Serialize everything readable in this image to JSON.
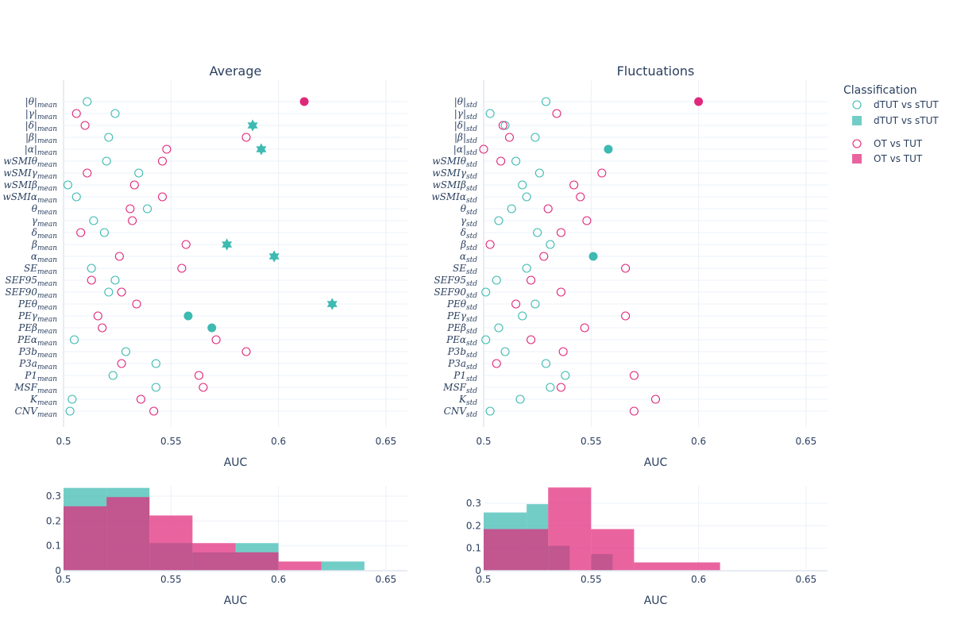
{
  "chart_data": [
    {
      "id": "average",
      "type": "scatter",
      "title": "Average",
      "xlabel": "AUC",
      "xlim": [
        0.5,
        0.66
      ],
      "xticks": [
        "0.5",
        "0.55",
        "0.6",
        "0.65"
      ],
      "xtick_values": [
        0.5,
        0.55,
        0.6,
        0.65
      ],
      "categories": [
        {
          "base": "|θ|",
          "sub": "mean"
        },
        {
          "base": "|γ|",
          "sub": "mean"
        },
        {
          "base": "|δ|",
          "sub": "mean"
        },
        {
          "base": "|β|",
          "sub": "mean"
        },
        {
          "base": "|α|",
          "sub": "mean"
        },
        {
          "base": "wSMIθ",
          "sub": "mean"
        },
        {
          "base": "wSMIγ",
          "sub": "mean"
        },
        {
          "base": "wSMIβ",
          "sub": "mean"
        },
        {
          "base": "wSMIα",
          "sub": "mean"
        },
        {
          "base": "θ",
          "sub": "mean"
        },
        {
          "base": "γ",
          "sub": "mean"
        },
        {
          "base": "δ",
          "sub": "mean"
        },
        {
          "base": "β",
          "sub": "mean"
        },
        {
          "base": "α",
          "sub": "mean"
        },
        {
          "base": "SE",
          "sub": "mean"
        },
        {
          "base": "SEF95",
          "sub": "mean"
        },
        {
          "base": "SEF90",
          "sub": "mean"
        },
        {
          "base": "PEθ",
          "sub": "mean"
        },
        {
          "base": "PEγ",
          "sub": "mean"
        },
        {
          "base": "PEβ",
          "sub": "mean"
        },
        {
          "base": "PEα",
          "sub": "mean"
        },
        {
          "base": "P3b",
          "sub": "mean"
        },
        {
          "base": "P3a",
          "sub": "mean"
        },
        {
          "base": "P1",
          "sub": "mean"
        },
        {
          "base": "MSF",
          "sub": "mean"
        },
        {
          "base": "K",
          "sub": "mean"
        },
        {
          "base": "CNV",
          "sub": "mean"
        }
      ],
      "series": [
        {
          "name": "dTUT vs sTUT",
          "color": "#3dbab2",
          "values": [
            0.511,
            0.524,
            0.588,
            0.521,
            0.592,
            0.52,
            0.535,
            0.502,
            0.506,
            0.539,
            0.514,
            0.519,
            0.576,
            0.598,
            0.513,
            0.524,
            0.521,
            0.625,
            0.558,
            0.569,
            0.505,
            0.529,
            0.543,
            0.523,
            0.543,
            0.504,
            0.503
          ],
          "markers": [
            "open",
            "open",
            "star",
            "open",
            "star",
            "open",
            "open",
            "open",
            "open",
            "open",
            "open",
            "open",
            "star",
            "star",
            "open",
            "open",
            "open",
            "star",
            "filled",
            "filled",
            "open",
            "open",
            "open",
            "open",
            "open",
            "open",
            "open"
          ]
        },
        {
          "name": "OT vs TUT",
          "color": "#e0287a",
          "values": [
            0.612,
            0.506,
            0.51,
            0.585,
            0.548,
            0.546,
            0.511,
            0.533,
            0.546,
            0.531,
            0.532,
            0.508,
            0.557,
            0.526,
            0.555,
            0.513,
            0.527,
            0.534,
            0.516,
            0.518,
            0.571,
            0.585,
            0.527,
            0.563,
            0.565,
            0.536,
            0.542
          ],
          "markers": [
            "filled",
            "open",
            "open",
            "open",
            "open",
            "open",
            "open",
            "open",
            "open",
            "open",
            "open",
            "open",
            "open",
            "open",
            "open",
            "open",
            "open",
            "open",
            "open",
            "open",
            "open",
            "open",
            "open",
            "open",
            "open",
            "open",
            "open"
          ]
        }
      ]
    },
    {
      "id": "fluctuations",
      "type": "scatter",
      "title": "Fluctuations",
      "xlabel": "AUC",
      "xlim": [
        0.5,
        0.66
      ],
      "xticks": [
        "0.5",
        "0.55",
        "0.6",
        "0.65"
      ],
      "xtick_values": [
        0.5,
        0.55,
        0.6,
        0.65
      ],
      "categories": [
        {
          "base": "|θ|",
          "sub": "std"
        },
        {
          "base": "|γ|",
          "sub": "std"
        },
        {
          "base": "|δ|",
          "sub": "std"
        },
        {
          "base": "|β|",
          "sub": "std"
        },
        {
          "base": "|α|",
          "sub": "std"
        },
        {
          "base": "wSMIθ",
          "sub": "std"
        },
        {
          "base": "wSMIγ",
          "sub": "std"
        },
        {
          "base": "wSMIβ",
          "sub": "std"
        },
        {
          "base": "wSMIα",
          "sub": "std"
        },
        {
          "base": "θ",
          "sub": "std"
        },
        {
          "base": "γ",
          "sub": "std"
        },
        {
          "base": "δ",
          "sub": "std"
        },
        {
          "base": "β",
          "sub": "std"
        },
        {
          "base": "α",
          "sub": "std"
        },
        {
          "base": "SE",
          "sub": "std"
        },
        {
          "base": "SEF95",
          "sub": "std"
        },
        {
          "base": "SEF90",
          "sub": "std"
        },
        {
          "base": "PEθ",
          "sub": "std"
        },
        {
          "base": "PEγ",
          "sub": "std"
        },
        {
          "base": "PEβ",
          "sub": "std"
        },
        {
          "base": "PEα",
          "sub": "std"
        },
        {
          "base": "P3b",
          "sub": "std"
        },
        {
          "base": "P3a",
          "sub": "std"
        },
        {
          "base": "P1",
          "sub": "std"
        },
        {
          "base": "MSF",
          "sub": "std"
        },
        {
          "base": "K",
          "sub": "std"
        },
        {
          "base": "CNV",
          "sub": "std"
        }
      ],
      "series": [
        {
          "name": "dTUT vs sTUT",
          "color": "#3dbab2",
          "values": [
            0.529,
            0.503,
            0.51,
            0.524,
            0.558,
            0.515,
            0.526,
            0.518,
            0.52,
            0.513,
            0.507,
            0.525,
            0.531,
            0.551,
            0.52,
            0.506,
            0.501,
            0.524,
            0.518,
            0.507,
            0.501,
            0.51,
            0.529,
            0.538,
            0.531,
            0.517,
            0.503
          ],
          "markers": [
            "open",
            "open",
            "open",
            "open",
            "filled",
            "open",
            "open",
            "open",
            "open",
            "open",
            "open",
            "open",
            "open",
            "filled",
            "open",
            "open",
            "open",
            "open",
            "open",
            "open",
            "open",
            "open",
            "open",
            "open",
            "open",
            "open",
            "open"
          ]
        },
        {
          "name": "OT vs TUT",
          "color": "#e0287a",
          "values": [
            0.6,
            0.534,
            0.509,
            0.512,
            0.5,
            0.508,
            0.555,
            0.542,
            0.545,
            0.53,
            0.548,
            0.536,
            0.503,
            0.528,
            0.566,
            0.522,
            0.536,
            0.515,
            0.566,
            0.547,
            0.522,
            0.537,
            0.506,
            0.57,
            0.536,
            0.58,
            0.57
          ],
          "markers": [
            "filled",
            "open",
            "open",
            "open",
            "open",
            "open",
            "open",
            "open",
            "open",
            "open",
            "open",
            "open",
            "open",
            "open",
            "open",
            "open",
            "open",
            "open",
            "open",
            "open",
            "open",
            "open",
            "open",
            "open",
            "open",
            "open",
            "open"
          ]
        }
      ]
    },
    {
      "id": "average-hist",
      "type": "bar",
      "xlabel": "AUC",
      "xlim": [
        0.5,
        0.66
      ],
      "ylim": [
        0,
        0.35
      ],
      "xticks": [
        "0.5",
        "0.55",
        "0.6",
        "0.65"
      ],
      "xtick_values": [
        0.5,
        0.55,
        0.6,
        0.65
      ],
      "yticks": [
        "0",
        "0.1",
        "0.2",
        "0.3"
      ],
      "ytick_values": [
        0,
        0.1,
        0.2,
        0.3
      ],
      "series": [
        {
          "name": "dTUT vs sTUT",
          "color": "#3dbab2",
          "bins": [
            [
              0.5,
              0.52,
              0.333
            ],
            [
              0.52,
              0.54,
              0.333
            ],
            [
              0.54,
              0.56,
              0.111
            ],
            [
              0.56,
              0.58,
              0.074
            ],
            [
              0.58,
              0.6,
              0.111
            ],
            [
              0.62,
              0.64,
              0.037
            ]
          ]
        },
        {
          "name": "OT vs TUT",
          "color": "#e0287a",
          "bins": [
            [
              0.5,
              0.52,
              0.259
            ],
            [
              0.52,
              0.54,
              0.296
            ],
            [
              0.54,
              0.56,
              0.222
            ],
            [
              0.56,
              0.58,
              0.111
            ],
            [
              0.58,
              0.6,
              0.074
            ],
            [
              0.6,
              0.62,
              0.037
            ]
          ]
        }
      ]
    },
    {
      "id": "fluctuations-hist",
      "type": "bar",
      "xlabel": "AUC",
      "xlim": [
        0.5,
        0.66
      ],
      "ylim": [
        0,
        0.37
      ],
      "xticks": [
        "0.5",
        "0.55",
        "0.6",
        "0.65"
      ],
      "xtick_values": [
        0.5,
        0.55,
        0.6,
        0.65
      ],
      "yticks": [
        "0",
        "0.1",
        "0.2",
        "0.3"
      ],
      "ytick_values": [
        0,
        0.1,
        0.2,
        0.3
      ],
      "series": [
        {
          "name": "dTUT vs sTUT",
          "color": "#3dbab2",
          "bins": [
            [
              0.5,
              0.52,
              0.259
            ],
            [
              0.52,
              0.53,
              0.296
            ],
            [
              0.53,
              0.54,
              0.111
            ],
            [
              0.54,
              0.55,
              0.0
            ],
            [
              0.55,
              0.56,
              0.074
            ]
          ]
        },
        {
          "name": "OT vs TUT",
          "color": "#e0287a",
          "bins": [
            [
              0.5,
              0.53,
              0.185
            ],
            [
              0.53,
              0.55,
              0.37
            ],
            [
              0.55,
              0.57,
              0.185
            ],
            [
              0.57,
              0.61,
              0.037
            ]
          ]
        }
      ]
    }
  ],
  "legend": {
    "title": "Classification",
    "items": [
      {
        "label": "dTUT vs sTUT",
        "symbol": "open-circle",
        "color": "#3dbab2"
      },
      {
        "label": "dTUT vs sTUT",
        "symbol": "square",
        "color": "#3dbab2"
      },
      {
        "label": "OT vs TUT",
        "symbol": "open-circle",
        "color": "#e0287a"
      },
      {
        "label": "OT vs TUT",
        "symbol": "square",
        "color": "#e0287a"
      }
    ]
  }
}
